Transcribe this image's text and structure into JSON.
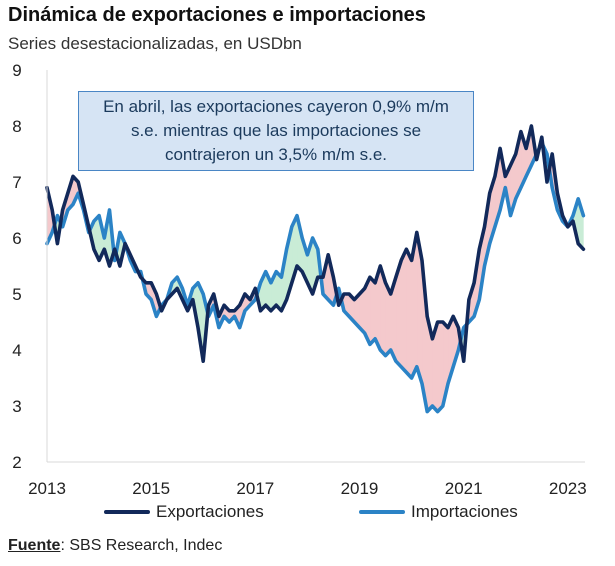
{
  "chart_data": {
    "type": "line",
    "title": "Dinámica de exportaciones e importaciones",
    "subtitle": "Series desestacionalizadas, en USDbn",
    "annotation": {
      "line1": "En abril, las exportaciones cayeron 0,9% m/m",
      "line2": "s.e. mientras que las importaciones se",
      "line3": "contrajeron un 3,5% m/m s.e."
    },
    "source_label": "Fuente",
    "source_text": ": SBS Research, Indec",
    "ylim": [
      2,
      9
    ],
    "yticks": [
      "2",
      "3",
      "4",
      "5",
      "6",
      "7",
      "8",
      "9"
    ],
    "xlim": [
      2013.0,
      2023.33
    ],
    "xticks": [
      "2013",
      "2015",
      "2017",
      "2019",
      "2021",
      "2023"
    ],
    "grid": "none",
    "legend_position": "bottom",
    "fill_colors": {
      "exports_above": "#f4c9cc",
      "imports_above": "#c9ecd6"
    },
    "series": [
      {
        "name": "Exportaciones",
        "color": "#12295a",
        "points": [
          [
            2013.0,
            6.9
          ],
          [
            2013.1,
            6.5
          ],
          [
            2013.2,
            5.9
          ],
          [
            2013.3,
            6.5
          ],
          [
            2013.4,
            6.8
          ],
          [
            2013.5,
            7.1
          ],
          [
            2013.6,
            7.0
          ],
          [
            2013.7,
            6.6
          ],
          [
            2013.8,
            6.2
          ],
          [
            2013.9,
            5.8
          ],
          [
            2014.0,
            5.6
          ],
          [
            2014.1,
            5.8
          ],
          [
            2014.2,
            5.5
          ],
          [
            2014.3,
            5.8
          ],
          [
            2014.4,
            5.5
          ],
          [
            2014.5,
            5.9
          ],
          [
            2014.6,
            5.7
          ],
          [
            2014.7,
            5.5
          ],
          [
            2014.8,
            5.3
          ],
          [
            2014.9,
            5.2
          ],
          [
            2015.0,
            5.2
          ],
          [
            2015.1,
            5.0
          ],
          [
            2015.2,
            4.7
          ],
          [
            2015.3,
            4.9
          ],
          [
            2015.4,
            5.0
          ],
          [
            2015.5,
            5.1
          ],
          [
            2015.6,
            4.9
          ],
          [
            2015.7,
            4.7
          ],
          [
            2015.8,
            4.9
          ],
          [
            2015.9,
            4.4
          ],
          [
            2016.0,
            3.8
          ],
          [
            2016.1,
            4.8
          ],
          [
            2016.2,
            5.0
          ],
          [
            2016.3,
            4.6
          ],
          [
            2016.4,
            4.8
          ],
          [
            2016.5,
            4.7
          ],
          [
            2016.6,
            4.7
          ],
          [
            2016.7,
            4.8
          ],
          [
            2016.8,
            5.0
          ],
          [
            2016.9,
            4.9
          ],
          [
            2017.0,
            5.1
          ],
          [
            2017.1,
            4.7
          ],
          [
            2017.2,
            4.8
          ],
          [
            2017.3,
            4.7
          ],
          [
            2017.4,
            4.8
          ],
          [
            2017.5,
            4.7
          ],
          [
            2017.6,
            4.9
          ],
          [
            2017.7,
            5.2
          ],
          [
            2017.8,
            5.5
          ],
          [
            2017.9,
            5.4
          ],
          [
            2018.0,
            5.2
          ],
          [
            2018.1,
            5.0
          ],
          [
            2018.2,
            5.3
          ],
          [
            2018.3,
            5.3
          ],
          [
            2018.4,
            5.7
          ],
          [
            2018.5,
            5.3
          ],
          [
            2018.6,
            4.8
          ],
          [
            2018.7,
            5.0
          ],
          [
            2018.8,
            5.0
          ],
          [
            2018.9,
            4.9
          ],
          [
            2019.0,
            5.0
          ],
          [
            2019.1,
            5.1
          ],
          [
            2019.2,
            5.3
          ],
          [
            2019.3,
            5.2
          ],
          [
            2019.4,
            5.5
          ],
          [
            2019.5,
            5.2
          ],
          [
            2019.6,
            5.0
          ],
          [
            2019.7,
            5.3
          ],
          [
            2019.8,
            5.6
          ],
          [
            2019.9,
            5.8
          ],
          [
            2020.0,
            5.6
          ],
          [
            2020.1,
            6.1
          ],
          [
            2020.2,
            5.6
          ],
          [
            2020.3,
            4.6
          ],
          [
            2020.4,
            4.2
          ],
          [
            2020.5,
            4.5
          ],
          [
            2020.6,
            4.5
          ],
          [
            2020.7,
            4.4
          ],
          [
            2020.8,
            4.6
          ],
          [
            2020.9,
            4.4
          ],
          [
            2021.0,
            3.8
          ],
          [
            2021.1,
            4.9
          ],
          [
            2021.2,
            5.2
          ],
          [
            2021.3,
            5.8
          ],
          [
            2021.4,
            6.2
          ],
          [
            2021.5,
            6.8
          ],
          [
            2021.6,
            7.1
          ],
          [
            2021.7,
            7.6
          ],
          [
            2021.8,
            7.1
          ],
          [
            2021.9,
            7.3
          ],
          [
            2022.0,
            7.5
          ],
          [
            2022.1,
            7.9
          ],
          [
            2022.2,
            7.6
          ],
          [
            2022.3,
            8.0
          ],
          [
            2022.4,
            7.4
          ],
          [
            2022.5,
            7.8
          ],
          [
            2022.6,
            7.0
          ],
          [
            2022.7,
            7.5
          ],
          [
            2022.8,
            6.8
          ],
          [
            2022.9,
            6.4
          ],
          [
            2023.0,
            6.2
          ],
          [
            2023.1,
            6.3
          ],
          [
            2023.2,
            5.9
          ],
          [
            2023.3,
            5.8
          ]
        ]
      },
      {
        "name": "Importaciones",
        "color": "#2b83c6",
        "points": [
          [
            2013.0,
            5.9
          ],
          [
            2013.1,
            6.1
          ],
          [
            2013.2,
            6.4
          ],
          [
            2013.3,
            6.2
          ],
          [
            2013.4,
            6.5
          ],
          [
            2013.5,
            6.6
          ],
          [
            2013.6,
            6.8
          ],
          [
            2013.7,
            6.5
          ],
          [
            2013.8,
            6.1
          ],
          [
            2013.9,
            6.3
          ],
          [
            2014.0,
            6.4
          ],
          [
            2014.1,
            6.0
          ],
          [
            2014.2,
            6.5
          ],
          [
            2014.3,
            5.6
          ],
          [
            2014.4,
            6.1
          ],
          [
            2014.5,
            5.9
          ],
          [
            2014.6,
            5.6
          ],
          [
            2014.7,
            5.4
          ],
          [
            2014.8,
            5.4
          ],
          [
            2014.9,
            5.0
          ],
          [
            2015.0,
            4.9
          ],
          [
            2015.1,
            4.6
          ],
          [
            2015.2,
            4.8
          ],
          [
            2015.3,
            4.9
          ],
          [
            2015.4,
            5.2
          ],
          [
            2015.5,
            5.3
          ],
          [
            2015.6,
            5.1
          ],
          [
            2015.7,
            4.8
          ],
          [
            2015.8,
            5.1
          ],
          [
            2015.9,
            5.2
          ],
          [
            2016.0,
            5.0
          ],
          [
            2016.1,
            4.6
          ],
          [
            2016.2,
            4.8
          ],
          [
            2016.3,
            4.4
          ],
          [
            2016.4,
            4.6
          ],
          [
            2016.5,
            4.5
          ],
          [
            2016.6,
            4.6
          ],
          [
            2016.7,
            4.4
          ],
          [
            2016.8,
            4.7
          ],
          [
            2016.9,
            4.8
          ],
          [
            2017.0,
            4.9
          ],
          [
            2017.1,
            5.2
          ],
          [
            2017.2,
            5.4
          ],
          [
            2017.3,
            5.2
          ],
          [
            2017.4,
            5.4
          ],
          [
            2017.5,
            5.3
          ],
          [
            2017.6,
            5.8
          ],
          [
            2017.7,
            6.2
          ],
          [
            2017.8,
            6.4
          ],
          [
            2017.9,
            6.0
          ],
          [
            2018.0,
            5.7
          ],
          [
            2018.1,
            6.0
          ],
          [
            2018.2,
            5.8
          ],
          [
            2018.3,
            5.0
          ],
          [
            2018.4,
            4.9
          ],
          [
            2018.5,
            4.8
          ],
          [
            2018.6,
            5.1
          ],
          [
            2018.7,
            4.7
          ],
          [
            2018.8,
            4.6
          ],
          [
            2018.9,
            4.5
          ],
          [
            2019.0,
            4.4
          ],
          [
            2019.1,
            4.3
          ],
          [
            2019.2,
            4.1
          ],
          [
            2019.3,
            4.2
          ],
          [
            2019.4,
            4.0
          ],
          [
            2019.5,
            3.9
          ],
          [
            2019.6,
            4.0
          ],
          [
            2019.7,
            3.8
          ],
          [
            2019.8,
            3.7
          ],
          [
            2019.9,
            3.6
          ],
          [
            2020.0,
            3.5
          ],
          [
            2020.1,
            3.7
          ],
          [
            2020.2,
            3.4
          ],
          [
            2020.3,
            2.9
          ],
          [
            2020.4,
            3.0
          ],
          [
            2020.5,
            2.9
          ],
          [
            2020.6,
            3.0
          ],
          [
            2020.7,
            3.4
          ],
          [
            2020.8,
            3.7
          ],
          [
            2020.9,
            4.0
          ],
          [
            2021.0,
            4.4
          ],
          [
            2021.1,
            4.5
          ],
          [
            2021.2,
            4.6
          ],
          [
            2021.3,
            4.9
          ],
          [
            2021.4,
            5.5
          ],
          [
            2021.5,
            5.9
          ],
          [
            2021.6,
            6.2
          ],
          [
            2021.7,
            6.5
          ],
          [
            2021.8,
            6.9
          ],
          [
            2021.9,
            6.4
          ],
          [
            2022.0,
            6.7
          ],
          [
            2022.1,
            6.9
          ],
          [
            2022.2,
            7.1
          ],
          [
            2022.3,
            7.3
          ],
          [
            2022.4,
            7.5
          ],
          [
            2022.5,
            7.7
          ],
          [
            2022.6,
            7.5
          ],
          [
            2022.7,
            6.9
          ],
          [
            2022.8,
            6.5
          ],
          [
            2022.9,
            6.3
          ],
          [
            2023.0,
            6.2
          ],
          [
            2023.1,
            6.4
          ],
          [
            2023.2,
            6.7
          ],
          [
            2023.3,
            6.4
          ]
        ]
      }
    ]
  }
}
